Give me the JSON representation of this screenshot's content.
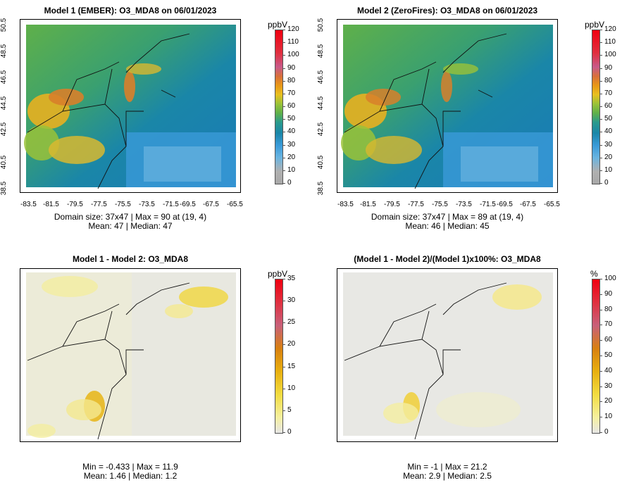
{
  "panels": [
    {
      "title": "Model 1 (EMBER): O3_MDA8 on 06/01/2023",
      "unit": "ppbV",
      "colorbar_ticks": [
        "120",
        "110",
        "100",
        "90",
        "80",
        "70",
        "60",
        "50",
        "40",
        "30",
        "20",
        "10",
        "0"
      ],
      "stats_line1": "Domain size: 37x47 | Max = 90 at (19, 4)",
      "stats_line2": "Mean: 47 |  Median: 47",
      "y_ticks": [
        "50.5",
        "48.5",
        "46.5",
        "44.5",
        "42.5",
        "40.5",
        "38.5"
      ],
      "x_ticks": [
        "-83.5",
        "-81.5",
        "-79.5",
        "-77.5",
        "-75.5",
        "-73.5",
        "-71.5",
        "-69.5",
        "-67.5",
        "-65.5"
      ]
    },
    {
      "title": "Model 2 (ZeroFires): O3_MDA8 on 06/01/2023",
      "unit": "ppbV",
      "colorbar_ticks": [
        "120",
        "110",
        "100",
        "90",
        "80",
        "70",
        "60",
        "50",
        "40",
        "30",
        "20",
        "10",
        "0"
      ],
      "stats_line1": "Domain size: 37x47 | Max = 89 at (19, 4)",
      "stats_line2": "Mean: 46 |  Median: 45",
      "y_ticks": [
        "50.5",
        "48.5",
        "46.5",
        "44.5",
        "42.5",
        "40.5",
        "38.5"
      ],
      "x_ticks": [
        "-83.5",
        "-81.5",
        "-79.5",
        "-77.5",
        "-75.5",
        "-73.5",
        "-71.5",
        "-69.5",
        "-67.5",
        "-65.5"
      ]
    },
    {
      "title": "Model 1 - Model 2: O3_MDA8",
      "unit": "ppbV",
      "colorbar_ticks": [
        "35",
        "30",
        "25",
        "20",
        "15",
        "10",
        "5",
        "0"
      ],
      "stats_line1": "Min = -0.433 | Max = 11.9",
      "stats_line2": "Mean: 1.46 |  Median: 1.2"
    },
    {
      "title": "(Model 1 - Model 2)/(Model 1)x100%: O3_MDA8",
      "unit": "%",
      "colorbar_ticks": [
        "100",
        "90",
        "80",
        "70",
        "60",
        "50",
        "40",
        "30",
        "20",
        "10",
        "0"
      ],
      "stats_line1": "Min = -1 | Max = 21.2",
      "stats_line2": "Mean: 2.9 |  Median: 2.5"
    }
  ],
  "colors": {
    "conc_scale": [
      "#a8a8a8",
      "#3a9ad8",
      "#2d8fc4",
      "#1a86a8",
      "#2a9a8c",
      "#5fb04a",
      "#9ac238",
      "#e8c020",
      "#e89818",
      "#d8703a",
      "#c85a8a",
      "#e03040",
      "#f00010"
    ],
    "diff_scale": [
      "#e6e6e6",
      "#f6f0a0",
      "#f2dc40",
      "#e8b010",
      "#d88010",
      "#c8607a",
      "#e03040",
      "#f00010"
    ]
  }
}
